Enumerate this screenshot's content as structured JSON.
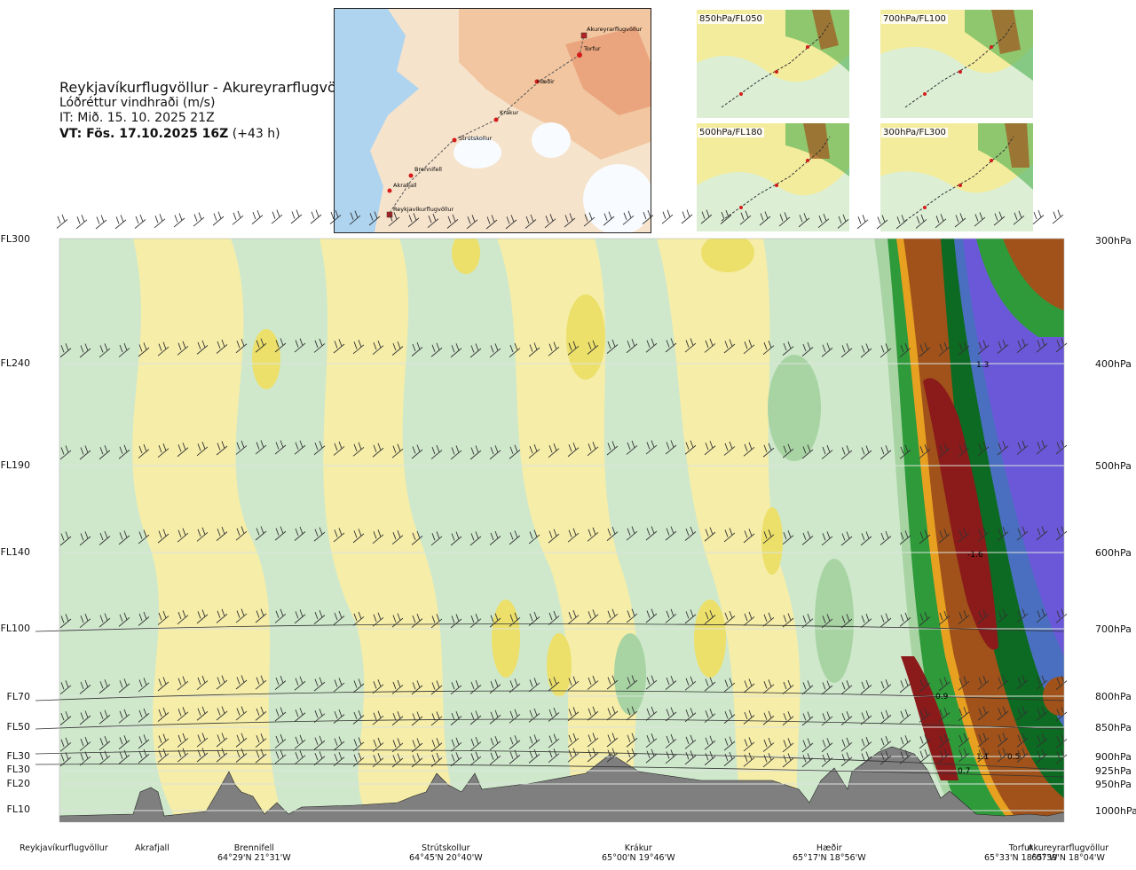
{
  "header": {
    "title": "Reykjavíkurflugvöllur - Akureyrarflugvöllur",
    "subtitle": "Lóðréttur vindhraði (m/s)",
    "issue_time": "IT: Mið. 15. 10. 2025 21Z",
    "valid_time_bold": "VT: Fös. 17.10.2025 16Z",
    "valid_time_lead": "(+43 h)"
  },
  "route_map": {
    "points": [
      "Akureyrarflugvöllur",
      "Torfur",
      "Hæðir",
      "Krákur",
      "Strútskollur",
      "Brennifell",
      "Akrafjall",
      "Reykjavíkurflugvöllur"
    ]
  },
  "mini_maps": [
    {
      "label": "850hPa/FL050"
    },
    {
      "label": "700hPa/FL100"
    },
    {
      "label": "500hPa/FL180"
    },
    {
      "label": "300hPa/FL300"
    }
  ],
  "chart_data": {
    "type": "heatmap",
    "title": "Reykjavíkurflugvöllur - Akureyrarflugvöllur",
    "variable": "Lóðréttur vindhraði (m/s)",
    "x_axis": "route distance",
    "left_axis_labels": [
      "FL300",
      "FL240",
      "FL190",
      "FL140",
      "FL100",
      "FL70",
      "FL50",
      "FL30",
      "FL30",
      "FL20",
      "FL10"
    ],
    "right_axis_labels": [
      "300hPa",
      "400hPa",
      "500hPa",
      "600hPa",
      "700hPa",
      "800hPa",
      "850hPa",
      "900hPa",
      "925hPa",
      "950hPa",
      "1000hPa"
    ],
    "pressure_levels": [
      300,
      400,
      500,
      600,
      700,
      800,
      850,
      900,
      925,
      950,
      1000
    ],
    "stations": [
      {
        "name": "Reykjavíkurflugvöllur",
        "coord": ""
      },
      {
        "name": "Akrafjall",
        "coord": ""
      },
      {
        "name": "Brennifell",
        "coord": "64°29'N 21°31'W"
      },
      {
        "name": "Strútskollur",
        "coord": "64°45'N 20°40'W"
      },
      {
        "name": "Krákur",
        "coord": "65°00'N 19°46'W"
      },
      {
        "name": "Hæðir",
        "coord": "65°17'N 18°56'W"
      },
      {
        "name": "Torfur",
        "coord": "65°33'N 18°07'W"
      },
      {
        "name": "Akureyrarflugvöllur",
        "coord": "65°39'N 18°04'W"
      }
    ],
    "annotations": [
      {
        "text": "1.3",
        "level_hPa": 400
      },
      {
        "text": "-1.6",
        "level_hPa": 600
      },
      {
        "text": "0.9",
        "level_hPa": 800
      },
      {
        "text": "1.1",
        "level_hPa": 900
      },
      {
        "text": "0.5",
        "level_hPa": 900
      },
      {
        "text": "0.7",
        "level_hPa": 925
      }
    ],
    "colors": {
      "up_strong": "#8b1a1a",
      "up_medium": "#a0521a",
      "up_weak": "#e8a020",
      "up_light": "#f0dc60",
      "up_faint": "#f5eda8",
      "neutral": "#fbfbe6",
      "down_faint": "#cfe8cc",
      "down_light": "#a8d4a4",
      "down_medium": "#2e9a3a",
      "down_strong": "#0c6a22",
      "down_deep": "#4a6fc0",
      "down_extreme": "#6a58d8",
      "terrain": "#7f7f7f"
    }
  }
}
